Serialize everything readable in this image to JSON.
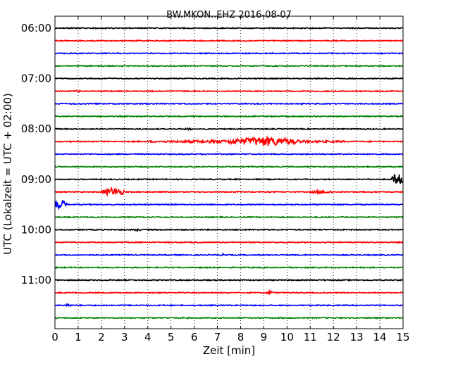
{
  "chart_data": {
    "type": "line",
    "subtype": "helicorder",
    "title": "BW.MKON..EHZ 2016-08-07",
    "xlabel": "Zeit  [min]",
    "ylabel": "UTC (Lokalzeit = UTC + 02:00)",
    "xlim": [
      0,
      15
    ],
    "x_ticks": [
      "0",
      "1",
      "2",
      "3",
      "4",
      "5",
      "6",
      "7",
      "8",
      "9",
      "10",
      "11",
      "12",
      "13",
      "14",
      "15"
    ],
    "y_tick_labels": [
      "06:00",
      "07:00",
      "08:00",
      "09:00",
      "10:00",
      "11:00"
    ],
    "trace_colors": [
      "#000000",
      "#ff0000",
      "#0000ff",
      "#008000"
    ],
    "grid": "vertical dotted",
    "row_start_times": [
      "06:00",
      "06:15",
      "06:30",
      "06:45",
      "07:00",
      "07:15",
      "07:30",
      "07:45",
      "08:00",
      "08:15",
      "08:30",
      "08:45",
      "09:00",
      "09:15",
      "09:30",
      "09:45",
      "10:00",
      "10:15",
      "10:30",
      "10:45",
      "11:00",
      "11:15",
      "11:30",
      "11:45"
    ],
    "events": [
      {
        "row": 5,
        "x_min": [
          0.9,
          1.1
        ],
        "level": 0.3
      },
      {
        "row": 8,
        "x_min": [
          5.5,
          6.0
        ],
        "level": 0.25
      },
      {
        "row": 9,
        "x_min": [
          4.0,
          12.5
        ],
        "level": 0.35
      },
      {
        "row": 9,
        "x_min": [
          7.5,
          10.5
        ],
        "level": 1.0
      },
      {
        "row": 12,
        "x_min": [
          14.5,
          15.0
        ],
        "level": 1.3
      },
      {
        "row": 13,
        "x_min": [
          2.0,
          3.0
        ],
        "level": 0.9
      },
      {
        "row": 13,
        "x_min": [
          11.0,
          12.0
        ],
        "level": 0.4
      },
      {
        "row": 14,
        "x_min": [
          0.0,
          0.5
        ],
        "level": 1.1
      },
      {
        "row": 16,
        "x_min": [
          3.4,
          3.7
        ],
        "level": 0.3
      },
      {
        "row": 18,
        "x_min": [
          7.1,
          7.4
        ],
        "level": 0.3
      },
      {
        "row": 21,
        "x_min": [
          9.1,
          9.4
        ],
        "level": 0.45
      },
      {
        "row": 22,
        "x_min": [
          0.4,
          0.7
        ],
        "level": 0.4
      }
    ]
  }
}
